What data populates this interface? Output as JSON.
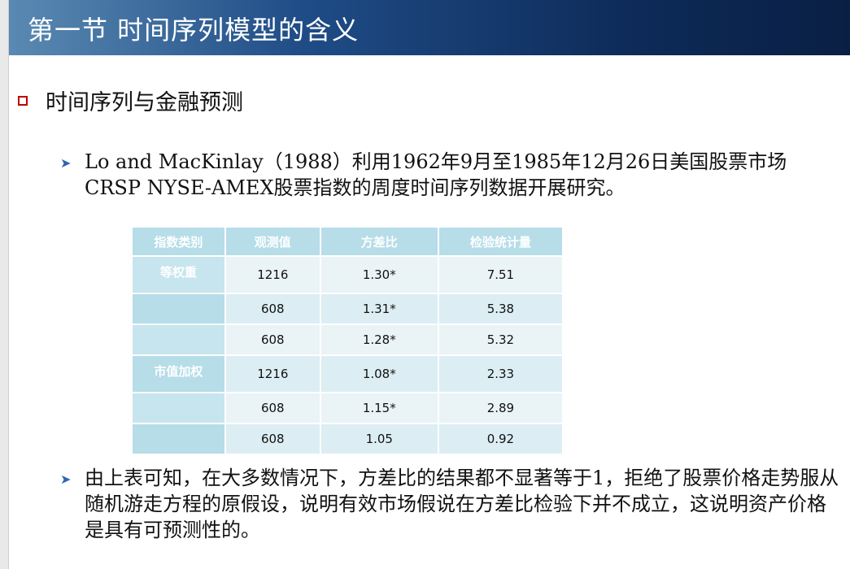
{
  "slide": {
    "title": "第一节 时间序列模型的含义",
    "heading": "时间序列与金融预测",
    "paragraph1": "Lo and MacKinlay（1988）利用1962年9月至1985年12月26日美国股票市场CRSP NYSE-AMEX股票指数的周度时间序列数据开展研究。",
    "paragraph2": "由上表可知，在大多数情况下，方差比的结果都不显著等于1，拒绝了股票价格走势服从随机游走方程的原假设，说明有效市场假说在方差比检验下并不成立，这说明资产价格是具有可预测性的。"
  },
  "table": {
    "headers": [
      "指数类别",
      "观测值",
      "方差比",
      "检验统计量"
    ],
    "rows": [
      {
        "category": "等权重",
        "obs": "1216",
        "ratio": "1.30*",
        "stat": "7.51"
      },
      {
        "category": "",
        "obs": "608",
        "ratio": "1.31*",
        "stat": "5.38"
      },
      {
        "category": "",
        "obs": "608",
        "ratio": "1.28*",
        "stat": "5.32"
      },
      {
        "category": "市值加权",
        "obs": "1216",
        "ratio": "1.08*",
        "stat": "2.33"
      },
      {
        "category": "",
        "obs": "608",
        "ratio": "1.15*",
        "stat": "2.89"
      },
      {
        "category": "",
        "obs": "608",
        "ratio": "1.05",
        "stat": "0.92"
      }
    ]
  },
  "colors": {
    "title_bg_dark": "#0a1f44",
    "bullet_red": "#c00000",
    "arrow_blue": "#2d67b0",
    "table_header": "#b6dde8"
  }
}
